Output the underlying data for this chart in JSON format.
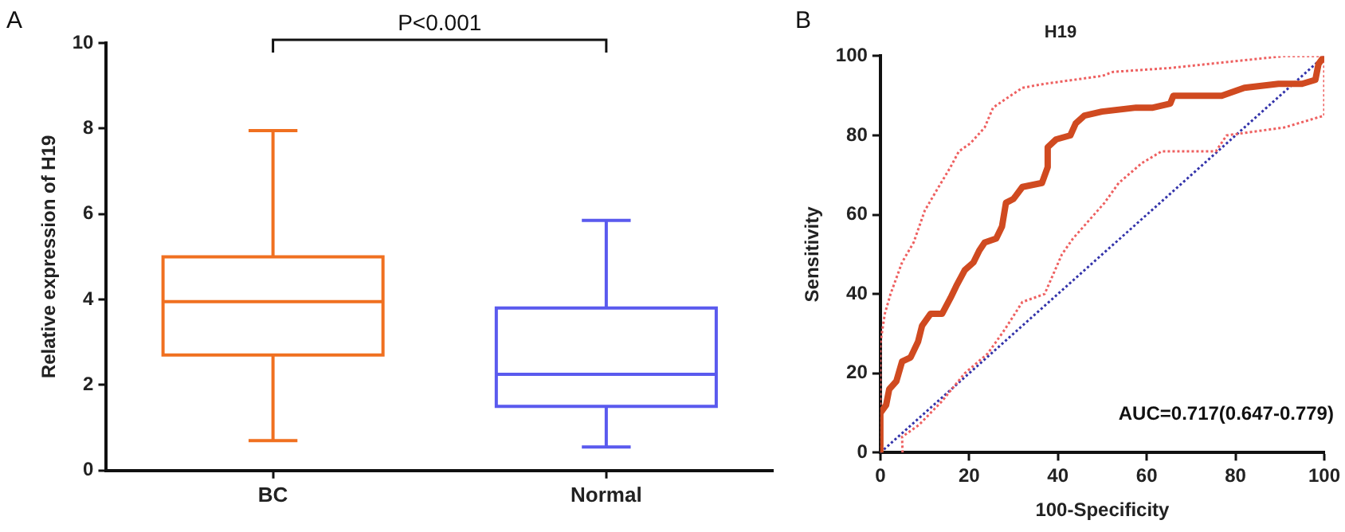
{
  "chart_data": [
    {
      "type": "box",
      "categories": [
        "BC",
        "Normal"
      ],
      "ylabel": "Relative expression of H19",
      "ylim": [
        0,
        10
      ],
      "yticks": [
        0,
        2,
        4,
        6,
        8,
        10
      ],
      "colors": [
        "#f07020",
        "#5a5aee"
      ],
      "boxes": [
        {
          "low": 0.7,
          "q1": 2.7,
          "median": 3.95,
          "q3": 5.0,
          "high": 7.95
        },
        {
          "low": 0.55,
          "q1": 1.5,
          "median": 2.25,
          "q3": 3.8,
          "high": 5.85
        }
      ],
      "annotations": [
        "A",
        "P<0.001"
      ],
      "grid": false,
      "legend": false
    },
    {
      "type": "line",
      "title": "H19",
      "xlabel": "100-Specificity",
      "ylabel": "Sensitivity",
      "xlim": [
        0,
        100
      ],
      "xticks": [
        0,
        20,
        40,
        60,
        80,
        100
      ],
      "ylim": [
        0,
        100
      ],
      "yticks": [
        0,
        20,
        40,
        60,
        80,
        100
      ],
      "grid": false,
      "legend": false,
      "marker": "none",
      "series": [
        {
          "color": "#d04a20",
          "line_style": "solid",
          "x": [
            0,
            0,
            1.3,
            2,
            3.6,
            4.9,
            6.8,
            8.5,
            9.4,
            11.3,
            13.9,
            15.8,
            17.1,
            19,
            21,
            22.3,
            23.5,
            26.1,
            27.4,
            28.3,
            30,
            32,
            36.4,
            37.7,
            37.7,
            39.6,
            42.8,
            44,
            46,
            49.9,
            57.6,
            61.4,
            65.3,
            66,
            76.9,
            82,
            89.7,
            95,
            98,
            98.7,
            100
          ],
          "values": [
            0,
            10,
            12,
            16,
            18,
            23,
            24,
            28,
            32,
            35,
            35,
            39,
            42,
            46,
            48,
            51,
            53,
            54,
            57,
            63,
            64,
            67,
            68,
            72,
            77,
            79,
            80,
            83,
            85,
            86,
            87,
            87,
            88,
            90,
            90,
            92,
            93,
            93,
            94,
            98,
            100
          ]
        },
        {
          "color": "#ee6060",
          "line_style": "dotted",
          "x": [
            0,
            0,
            1,
            2.3,
            4.9,
            7.5,
            10,
            12.6,
            15.8,
            17.7,
            20.3,
            23.5,
            25.4,
            28,
            32,
            37,
            50,
            52.4,
            65.3,
            91,
            100
          ],
          "values": [
            0,
            27.5,
            35,
            40,
            48,
            53,
            61,
            66,
            72,
            76,
            78,
            82,
            87,
            89,
            92,
            93,
            95,
            96,
            97,
            100,
            100
          ]
        },
        {
          "color": "#ee6060",
          "line_style": "dotted",
          "x": [
            5,
            4.9,
            8.7,
            13.9,
            19,
            24.2,
            28,
            32,
            37,
            40.9,
            43.4,
            50.5,
            53.7,
            58.9,
            63.4,
            75.6,
            78,
            91,
            100,
            100
          ],
          "values": [
            0,
            4,
            7,
            13,
            20,
            25,
            31,
            38,
            40,
            50,
            54,
            63,
            68,
            73,
            76,
            76,
            80,
            82,
            85,
            100
          ]
        },
        {
          "color": "#3333aa",
          "line_style": "dotted",
          "x": [
            0,
            100
          ],
          "values": [
            0,
            100
          ]
        }
      ],
      "annotations": [
        "B",
        "AUC=0.717(0.647-0.779)"
      ]
    }
  ]
}
